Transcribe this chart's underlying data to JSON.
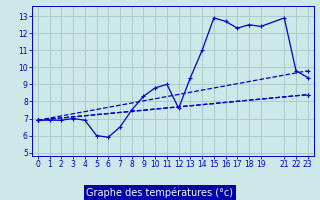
{
  "xlabel": "Graphe des températures (°c)",
  "background_color": "#cce8e8",
  "grid_color": "#aacccc",
  "line_color": "#0000cc",
  "xlim": [
    -0.5,
    23.5
  ],
  "ylim": [
    4.8,
    13.6
  ],
  "xticks": [
    0,
    1,
    2,
    3,
    4,
    5,
    6,
    7,
    8,
    9,
    10,
    11,
    12,
    13,
    14,
    15,
    16,
    17,
    18,
    19,
    21,
    22,
    23
  ],
  "yticks": [
    5,
    6,
    7,
    8,
    9,
    10,
    11,
    12,
    13
  ],
  "main_x": [
    0,
    1,
    2,
    3,
    4,
    5,
    6,
    7,
    8,
    9,
    10,
    11,
    12,
    13,
    14,
    15,
    16,
    17,
    18,
    19,
    21,
    22,
    23
  ],
  "main_y": [
    6.9,
    6.9,
    6.9,
    7.0,
    6.9,
    6.0,
    5.9,
    6.5,
    7.5,
    8.3,
    8.8,
    9.0,
    7.6,
    9.4,
    11.0,
    12.9,
    12.7,
    12.3,
    12.5,
    12.4,
    12.9,
    9.8,
    9.4
  ],
  "line2_x": [
    0,
    23
  ],
  "line2_y": [
    6.9,
    8.4
  ],
  "line3_x": [
    0,
    23
  ],
  "line3_y": [
    6.9,
    9.8
  ],
  "line4_x": [
    0,
    23
  ],
  "line4_y": [
    6.9,
    8.4
  ],
  "xlabel_bg": "#0000aa",
  "xlabel_fg": "#ffffff",
  "xlabel_fontsize": 7.0,
  "tick_fontsize": 5.5
}
